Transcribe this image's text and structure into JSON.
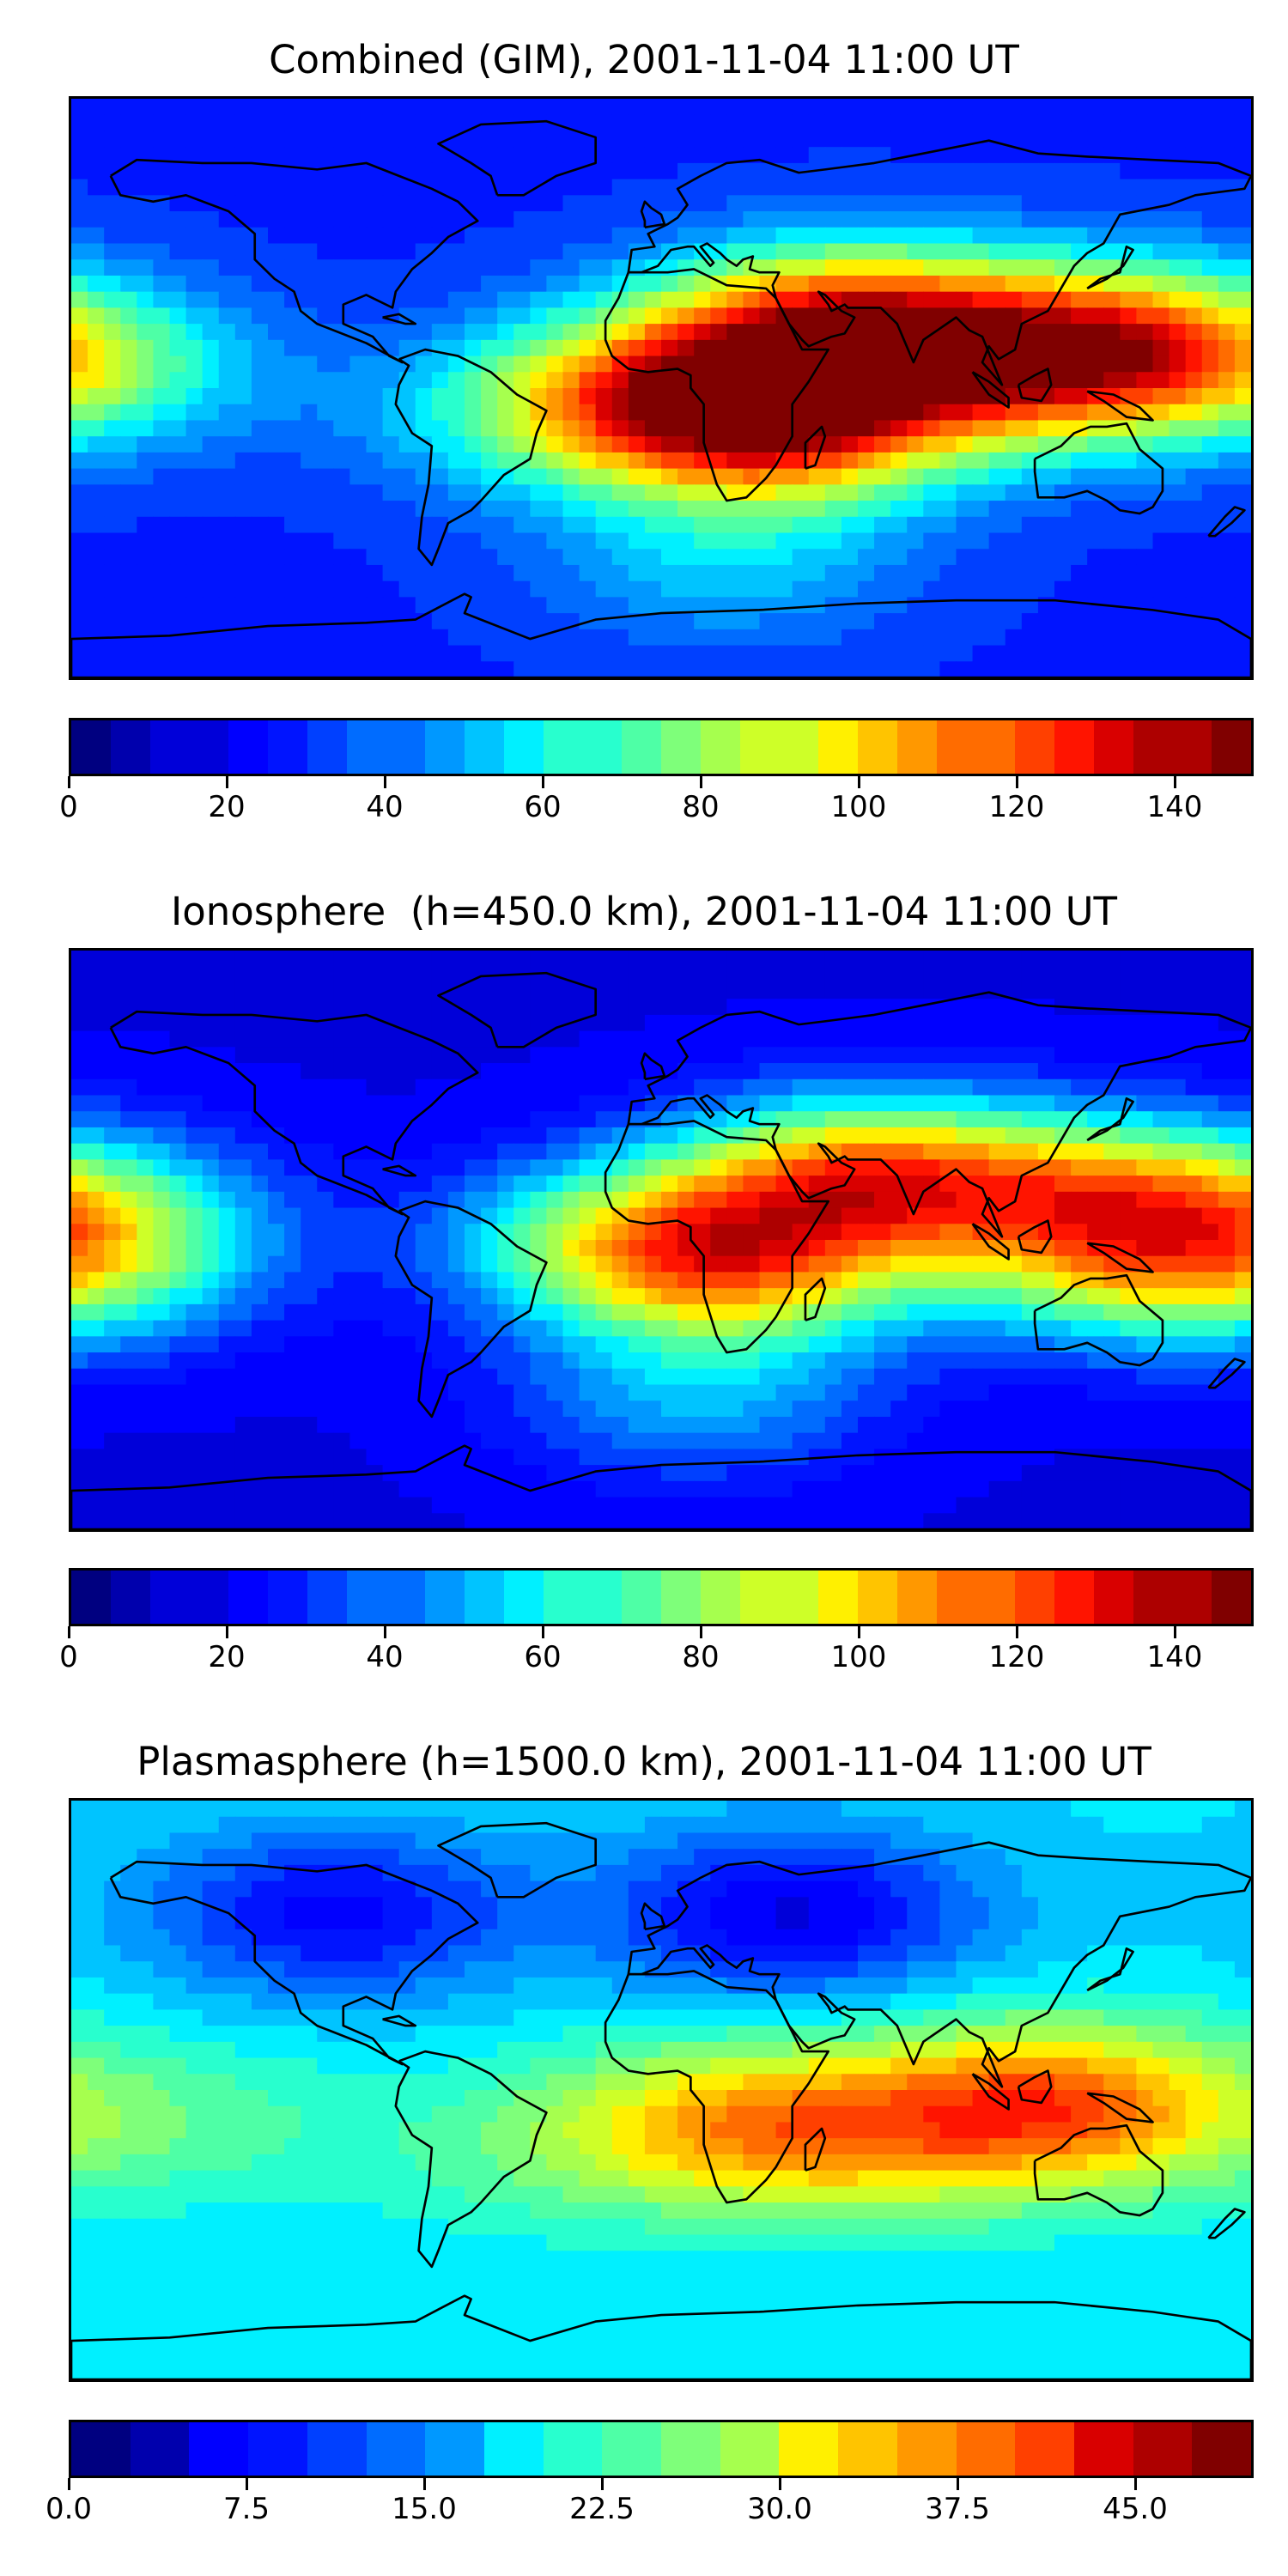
{
  "colormap": [
    "#000080",
    "#0000ad",
    "#0000d9",
    "#0000ff",
    "#0014ff",
    "#0040ff",
    "#006cff",
    "#0098ff",
    "#00c4ff",
    "#00f0ff",
    "#28ffce",
    "#4effa6",
    "#7eff7a",
    "#a6ff4e",
    "#ceff28",
    "#fff000",
    "#ffc400",
    "#ff9800",
    "#ff6c00",
    "#ff4000",
    "#ff1400",
    "#d90000",
    "#ad0000",
    "#800000"
  ],
  "panels": [
    {
      "title": "Combined (GIM), 2001-11-04 11:00 UT",
      "colorbar": {
        "min": 0,
        "max": 150,
        "levels": 30,
        "ticks": [
          {
            "value": 0,
            "label": "0"
          },
          {
            "value": 20,
            "label": "20"
          },
          {
            "value": 40,
            "label": "40"
          },
          {
            "value": 60,
            "label": "60"
          },
          {
            "value": 80,
            "label": "80"
          },
          {
            "value": 100,
            "label": "100"
          },
          {
            "value": 120,
            "label": "120"
          },
          {
            "value": 140,
            "label": "140"
          }
        ]
      },
      "field": {
        "background": 0.2,
        "blobs": [
          {
            "lon": 55,
            "lat": 20,
            "value": 0.78
          },
          {
            "lon": 35,
            "lat": -12,
            "value": 0.75
          },
          {
            "lon": 0,
            "lat": 0,
            "value": 0.55
          },
          {
            "lon": 110,
            "lat": 5,
            "value": 0.55
          },
          {
            "lon": 140,
            "lat": 15,
            "value": 0.6
          },
          {
            "lon": -40,
            "lat": -10,
            "value": 0.35
          },
          {
            "lon": -175,
            "lat": 5,
            "value": 0.42
          },
          {
            "lon": 20,
            "lat": -55,
            "value": 0.35
          }
        ]
      }
    },
    {
      "title": "Ionosphere  (h=450.0 km), 2001-11-04 11:00 UT",
      "colorbar": {
        "min": 0,
        "max": 150,
        "levels": 30,
        "ticks": [
          {
            "value": 0,
            "label": "0"
          },
          {
            "value": 20,
            "label": "20"
          },
          {
            "value": 40,
            "label": "40"
          },
          {
            "value": 60,
            "label": "60"
          },
          {
            "value": 80,
            "label": "80"
          },
          {
            "value": 100,
            "label": "100"
          },
          {
            "value": 120,
            "label": "120"
          },
          {
            "value": 140,
            "label": "140"
          }
        ]
      },
      "field": {
        "background": 0.12,
        "blobs": [
          {
            "lon": 60,
            "lat": 20,
            "value": 0.68
          },
          {
            "lon": 25,
            "lat": -10,
            "value": 0.52
          },
          {
            "lon": -10,
            "lat": 0,
            "value": 0.48
          },
          {
            "lon": 130,
            "lat": 15,
            "value": 0.5
          },
          {
            "lon": 140,
            "lat": -10,
            "value": 0.4
          },
          {
            "lon": -175,
            "lat": 10,
            "value": 0.38
          },
          {
            "lon": -175,
            "lat": -10,
            "value": 0.35
          },
          {
            "lon": 10,
            "lat": -50,
            "value": 0.32
          }
        ]
      }
    },
    {
      "title": "Plasmasphere (h=1500.0 km), 2001-11-04 11:00 UT",
      "colorbar": {
        "min": 0,
        "max": 50,
        "levels": 20,
        "ticks": [
          {
            "value": 0,
            "label": "0.0"
          },
          {
            "value": 7.5,
            "label": "7.5"
          },
          {
            "value": 15,
            "label": "15.0"
          },
          {
            "value": 22.5,
            "label": "22.5"
          },
          {
            "value": 30,
            "label": "30.0"
          },
          {
            "value": 37.5,
            "label": "37.5"
          },
          {
            "value": 45,
            "label": "45.0"
          }
        ]
      },
      "field": {
        "background": 0.38,
        "blobs": [
          {
            "lon": 120,
            "lat": -5,
            "value": 0.78
          },
          {
            "lon": 20,
            "lat": -10,
            "value": 0.62
          },
          {
            "lon": 60,
            "lat": -15,
            "value": 0.55
          },
          {
            "lon": -100,
            "lat": 55,
            "value": 0.15
          },
          {
            "lon": 40,
            "lat": 55,
            "value": 0.12
          },
          {
            "lon": -150,
            "lat": -10,
            "value": 0.48
          },
          {
            "lon": -40,
            "lat": -20,
            "value": 0.46
          }
        ]
      }
    }
  ]
}
